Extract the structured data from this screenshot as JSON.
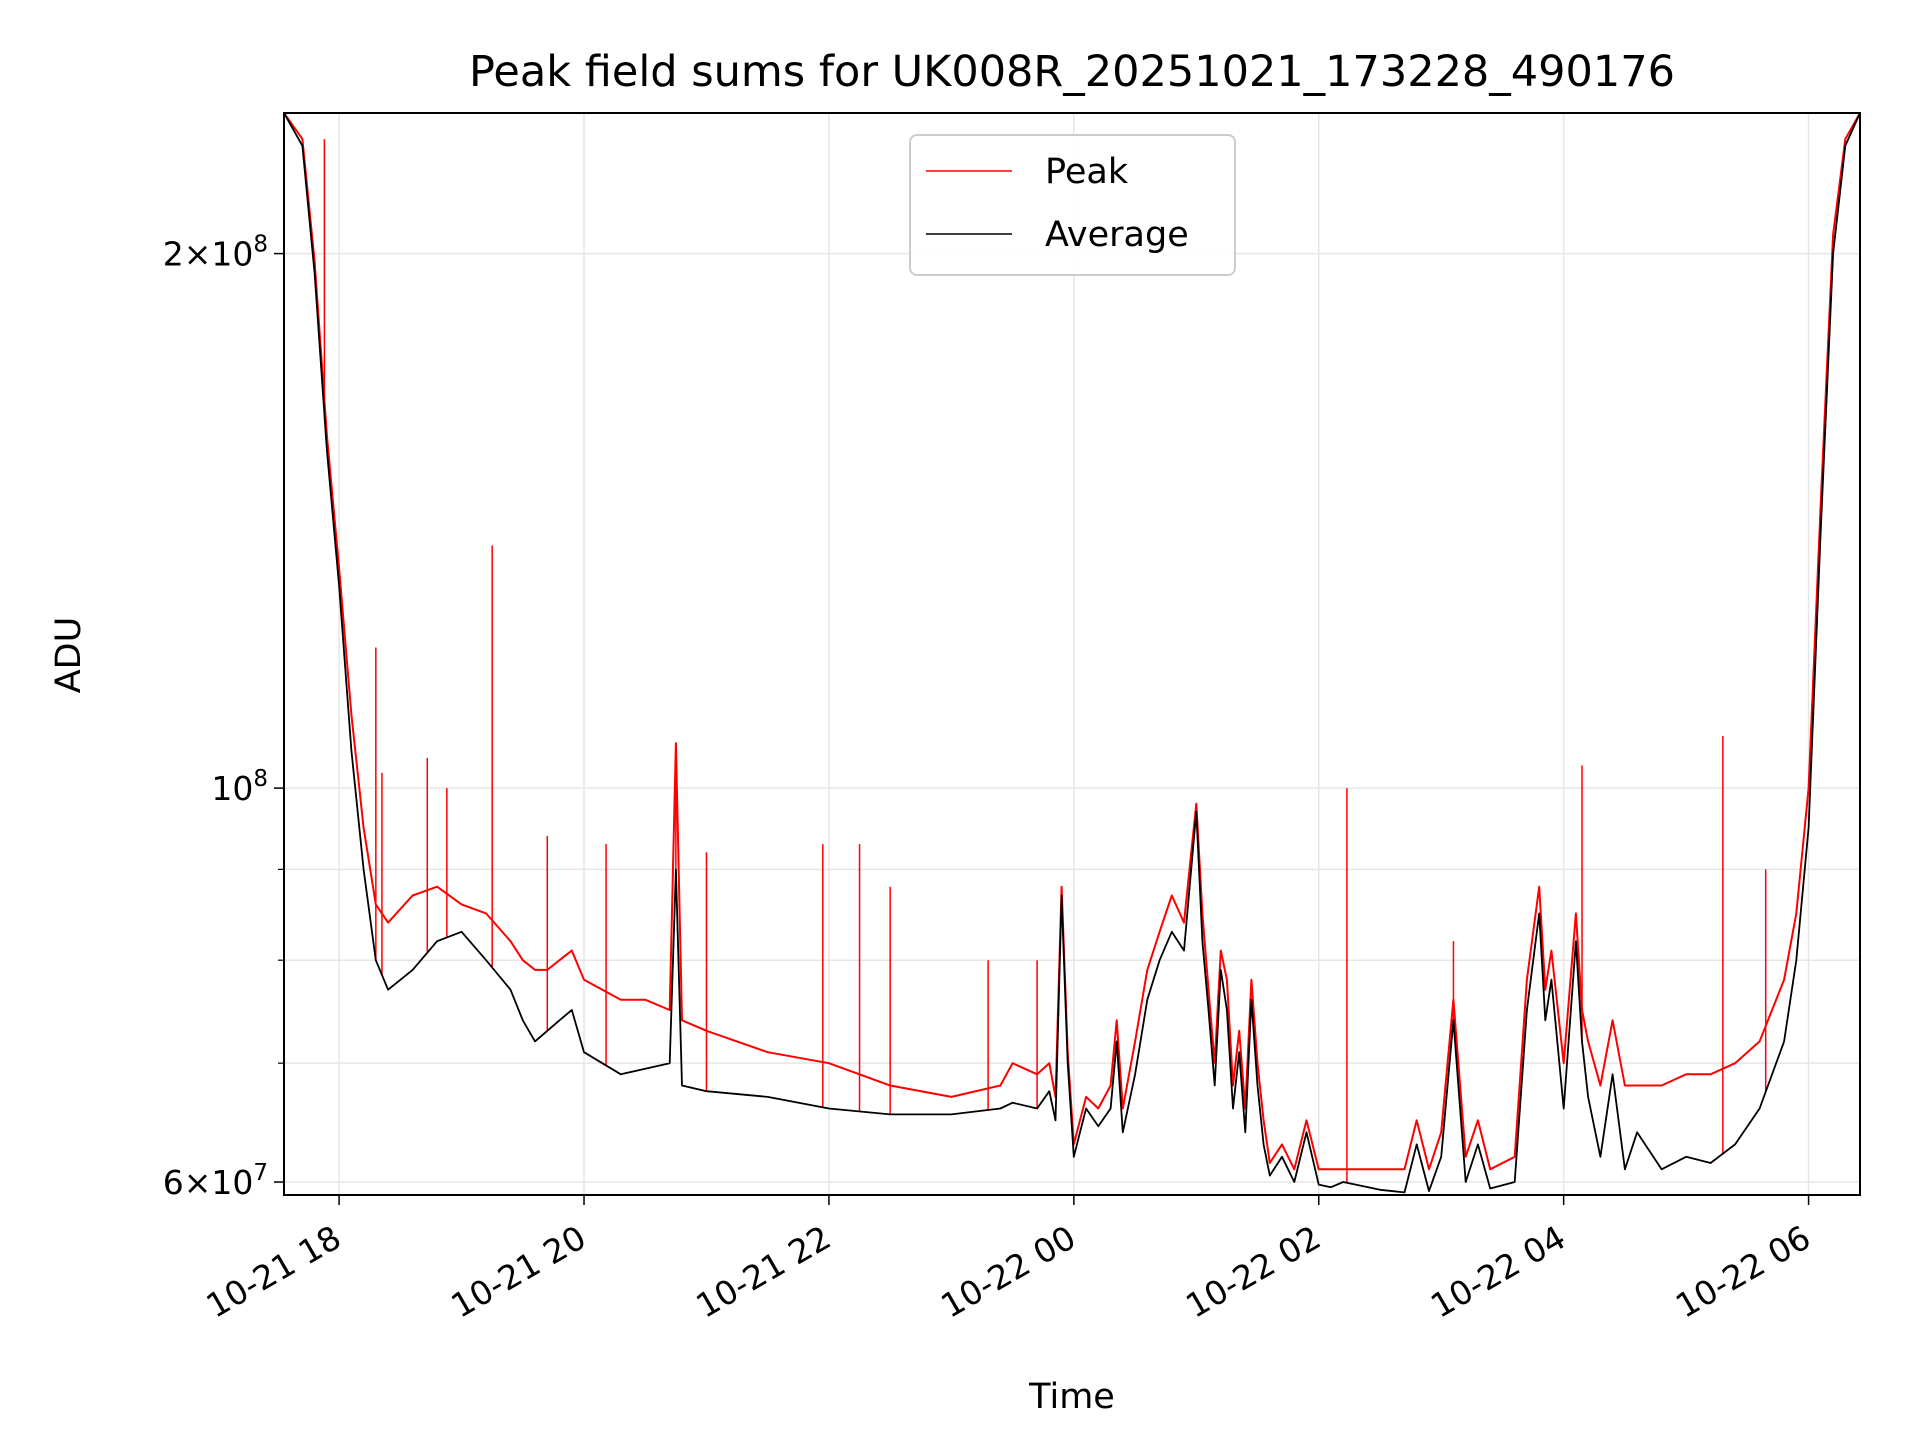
{
  "chart_data": {
    "type": "line",
    "title": "Peak field sums for UK008R_20251021_173228_490176",
    "xlabel": "Time",
    "ylabel": "ADU",
    "yscale": "log",
    "ylim": [
      59000000,
      240000000
    ],
    "xlim_hours": [
      17.55,
      30.42
    ],
    "grid": true,
    "legend_position": "upper center",
    "x_ticks": [
      {
        "hour": 18,
        "label": "10-21 18"
      },
      {
        "hour": 20,
        "label": "10-21 20"
      },
      {
        "hour": 22,
        "label": "10-21 22"
      },
      {
        "hour": 24,
        "label": "10-22 00"
      },
      {
        "hour": 26,
        "label": "10-22 02"
      },
      {
        "hour": 28,
        "label": "10-22 04"
      },
      {
        "hour": 30,
        "label": "10-22 06"
      }
    ],
    "y_major_ticks": [
      {
        "value": 60000000,
        "base": "6",
        "times": "×",
        "ten": "10",
        "exp": "7"
      },
      {
        "value": 100000000,
        "base": "",
        "times": "",
        "ten": "10",
        "exp": "8"
      },
      {
        "value": 200000000,
        "base": "2",
        "times": "×",
        "ten": "10",
        "exp": "8"
      }
    ],
    "y_minor_ticks": [
      70000000,
      80000000,
      90000000
    ],
    "series": [
      {
        "name": "Average",
        "color": "#000000",
        "x_hours": [
          17.55,
          17.7,
          17.8,
          17.9,
          18.0,
          18.1,
          18.2,
          18.3,
          18.4,
          18.6,
          18.8,
          19.0,
          19.2,
          19.4,
          19.5,
          19.6,
          19.7,
          19.8,
          19.9,
          20.0,
          20.3,
          20.5,
          20.7,
          20.75,
          20.8,
          21.0,
          21.5,
          22.0,
          22.5,
          23.0,
          23.4,
          23.5,
          23.7,
          23.8,
          23.85,
          23.9,
          23.95,
          24.0,
          24.05,
          24.1,
          24.2,
          24.3,
          24.35,
          24.4,
          24.5,
          24.6,
          24.7,
          24.8,
          24.9,
          25.0,
          25.05,
          25.1,
          25.15,
          25.2,
          25.25,
          25.3,
          25.35,
          25.4,
          25.45,
          25.5,
          25.55,
          25.6,
          25.7,
          25.8,
          25.9,
          26.0,
          26.1,
          26.2,
          26.5,
          26.7,
          26.8,
          26.9,
          27.0,
          27.1,
          27.2,
          27.3,
          27.4,
          27.6,
          27.7,
          27.8,
          27.85,
          27.9,
          28.0,
          28.1,
          28.15,
          28.2,
          28.3,
          28.4,
          28.5,
          28.6,
          28.8,
          29.0,
          29.2,
          29.4,
          29.6,
          29.8,
          29.9,
          30.0,
          30.1,
          30.2,
          30.3,
          30.42
        ],
        "values": [
          240000000,
          230000000,
          195000000,
          155000000,
          130000000,
          105000000,
          90000000,
          80000000,
          77000000,
          79000000,
          82000000,
          83000000,
          80000000,
          77000000,
          74000000,
          72000000,
          73000000,
          74000000,
          75000000,
          71000000,
          69000000,
          69500000,
          70000000,
          90000000,
          68000000,
          67500000,
          67000000,
          66000000,
          65500000,
          65500000,
          66000000,
          66500000,
          66000000,
          67500000,
          65000000,
          87000000,
          70000000,
          62000000,
          64000000,
          66000000,
          64500000,
          66000000,
          72000000,
          64000000,
          69000000,
          76000000,
          80000000,
          83000000,
          81000000,
          97000000,
          82000000,
          75000000,
          68000000,
          79000000,
          75000000,
          66000000,
          71000000,
          64000000,
          76000000,
          68000000,
          63000000,
          60500000,
          62000000,
          60000000,
          64000000,
          59800000,
          59600000,
          60000000,
          59400000,
          59200000,
          63000000,
          59300000,
          62000000,
          74000000,
          60000000,
          63000000,
          59500000,
          60000000,
          75000000,
          85000000,
          74000000,
          78000000,
          66000000,
          82000000,
          72000000,
          67000000,
          62000000,
          69000000,
          61000000,
          64000000,
          61000000,
          62000000,
          61500000,
          63000000,
          66000000,
          72000000,
          80000000,
          95000000,
          140000000,
          200000000,
          230000000,
          240000000
        ]
      },
      {
        "name": "Peak",
        "color": "#ff0000",
        "x_hours": [
          17.55,
          17.7,
          17.8,
          17.9,
          18.0,
          18.1,
          18.2,
          18.3,
          18.4,
          18.6,
          18.8,
          19.0,
          19.2,
          19.4,
          19.5,
          19.6,
          19.7,
          19.8,
          19.9,
          20.0,
          20.3,
          20.5,
          20.7,
          20.75,
          20.8,
          21.0,
          21.5,
          22.0,
          22.5,
          23.0,
          23.4,
          23.5,
          23.7,
          23.8,
          23.85,
          23.9,
          23.95,
          24.0,
          24.05,
          24.1,
          24.2,
          24.3,
          24.35,
          24.4,
          24.5,
          24.6,
          24.7,
          24.8,
          24.9,
          25.0,
          25.05,
          25.1,
          25.15,
          25.2,
          25.25,
          25.3,
          25.35,
          25.4,
          25.45,
          25.5,
          25.55,
          25.6,
          25.7,
          25.8,
          25.9,
          26.0,
          26.1,
          26.2,
          26.5,
          26.7,
          26.8,
          26.9,
          27.0,
          27.1,
          27.2,
          27.3,
          27.4,
          27.6,
          27.7,
          27.8,
          27.85,
          27.9,
          28.0,
          28.1,
          28.15,
          28.2,
          28.3,
          28.4,
          28.5,
          28.6,
          28.8,
          29.0,
          29.2,
          29.4,
          29.6,
          29.8,
          29.9,
          30.0,
          30.1,
          30.2,
          30.3,
          30.42
        ],
        "values": [
          240000000,
          232000000,
          198000000,
          158000000,
          133000000,
          110000000,
          95000000,
          86000000,
          84000000,
          87000000,
          88000000,
          86000000,
          85000000,
          82000000,
          80000000,
          79000000,
          79000000,
          80000000,
          81000000,
          78000000,
          76000000,
          76000000,
          75000000,
          106000000,
          74000000,
          73000000,
          71000000,
          70000000,
          68000000,
          67000000,
          68000000,
          70000000,
          69000000,
          70000000,
          67000000,
          88000000,
          71000000,
          63000000,
          65000000,
          67000000,
          66000000,
          68000000,
          74000000,
          66000000,
          72000000,
          79000000,
          83000000,
          87000000,
          84000000,
          98000000,
          85000000,
          77000000,
          70000000,
          81000000,
          78000000,
          68000000,
          73000000,
          66000000,
          78000000,
          70000000,
          65000000,
          61500000,
          63000000,
          61000000,
          65000000,
          61000000,
          61000000,
          61000000,
          61000000,
          61000000,
          65000000,
          61000000,
          64000000,
          76000000,
          62000000,
          65000000,
          61000000,
          62000000,
          78000000,
          88000000,
          77000000,
          81000000,
          70000000,
          85000000,
          75000000,
          72000000,
          68000000,
          74000000,
          68000000,
          68000000,
          68000000,
          69000000,
          69000000,
          70000000,
          72000000,
          78000000,
          85000000,
          100000000,
          145000000,
          205000000,
          232000000,
          240000000
        ]
      }
    ],
    "peak_spikes": [
      {
        "hour": 17.88,
        "value": 232000000
      },
      {
        "hour": 18.3,
        "value": 120000000
      },
      {
        "hour": 18.35,
        "value": 102000000
      },
      {
        "hour": 18.72,
        "value": 104000000
      },
      {
        "hour": 18.88,
        "value": 100000000
      },
      {
        "hour": 19.25,
        "value": 137000000
      },
      {
        "hour": 19.7,
        "value": 94000000
      },
      {
        "hour": 20.18,
        "value": 93000000
      },
      {
        "hour": 20.75,
        "value": 106000000
      },
      {
        "hour": 21.0,
        "value": 92000000
      },
      {
        "hour": 21.95,
        "value": 93000000
      },
      {
        "hour": 22.25,
        "value": 93000000
      },
      {
        "hour": 22.5,
        "value": 88000000
      },
      {
        "hour": 23.3,
        "value": 80000000
      },
      {
        "hour": 23.7,
        "value": 80000000
      },
      {
        "hour": 26.23,
        "value": 100000000
      },
      {
        "hour": 27.1,
        "value": 82000000
      },
      {
        "hour": 28.15,
        "value": 103000000
      },
      {
        "hour": 29.3,
        "value": 107000000
      },
      {
        "hour": 29.65,
        "value": 90000000
      }
    ]
  }
}
